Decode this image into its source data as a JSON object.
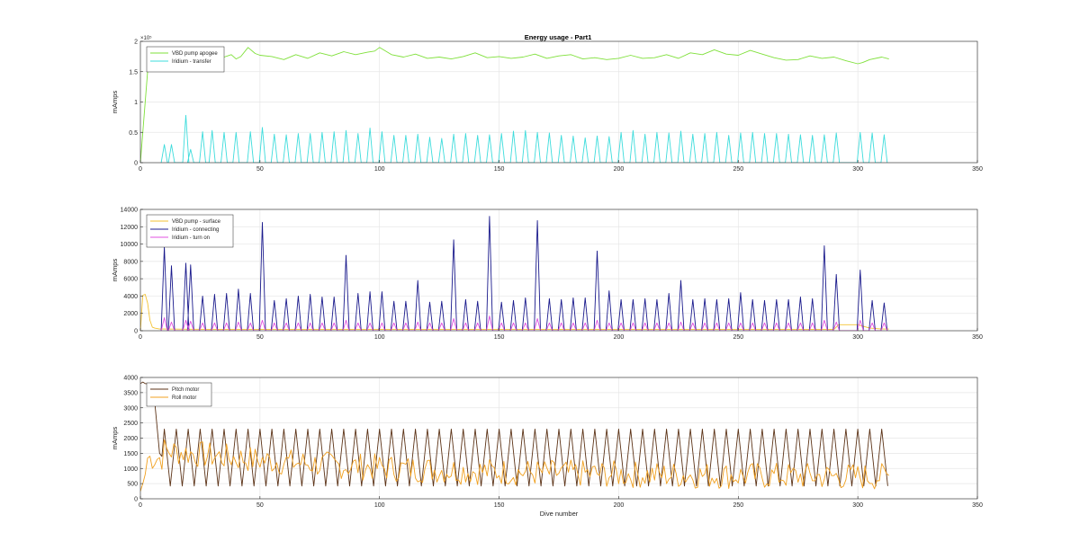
{
  "chart_data": [
    {
      "type": "line",
      "title": "Energy usage - Part1",
      "xlabel": "",
      "ylabel": "mAmps",
      "xlim": [
        0,
        350
      ],
      "ylim": [
        0,
        200000
      ],
      "xticks": [
        0,
        50,
        100,
        150,
        200,
        250,
        300,
        350
      ],
      "yticks": [
        0,
        50000,
        100000,
        150000,
        200000
      ],
      "ytick_labels": [
        "0",
        "0.5",
        "1",
        "1.5",
        "2"
      ],
      "y_exponent_label": "×10⁵",
      "grid": true,
      "legend_position": "top-left",
      "series": [
        {
          "name": "VBD pump apogee",
          "color": "#7fe03a",
          "x": [
            0,
            3,
            5,
            8,
            10,
            12,
            15,
            17,
            20,
            22,
            25,
            28,
            30,
            32,
            35,
            38,
            40,
            42,
            45,
            48,
            50,
            55,
            60,
            65,
            70,
            75,
            80,
            85,
            90,
            95,
            98,
            100,
            105,
            110,
            115,
            120,
            125,
            130,
            135,
            140,
            145,
            150,
            155,
            160,
            165,
            170,
            175,
            180,
            185,
            190,
            195,
            200,
            205,
            210,
            215,
            220,
            225,
            230,
            235,
            240,
            245,
            250,
            255,
            260,
            265,
            270,
            275,
            280,
            285,
            290,
            295,
            300,
            302,
            305,
            310,
            313
          ],
          "y": [
            0,
            150000,
            170000,
            168000,
            172000,
            175000,
            171000,
            173000,
            169000,
            175000,
            172000,
            176000,
            170000,
            172000,
            174000,
            178000,
            171000,
            175000,
            190000,
            180000,
            177000,
            175000,
            170000,
            178000,
            172000,
            181000,
            176000,
            183000,
            178000,
            182000,
            184000,
            190000,
            178000,
            174000,
            179000,
            172000,
            174000,
            171000,
            175000,
            181000,
            173000,
            175000,
            172000,
            174000,
            179000,
            172000,
            176000,
            178000,
            171000,
            173000,
            170000,
            172000,
            177000,
            172000,
            173000,
            178000,
            172000,
            181000,
            178000,
            186000,
            179000,
            177000,
            185000,
            179000,
            173000,
            169000,
            170000,
            176000,
            172000,
            174000,
            168000,
            163000,
            165000,
            170000,
            174000,
            171000
          ]
        },
        {
          "name": "Iridium - transfer",
          "color": "#3ddcdc",
          "spike_x": [
            10,
            13,
            19,
            21,
            26,
            30,
            35,
            40,
            46,
            51,
            56,
            61,
            66,
            71,
            76,
            81,
            86,
            91,
            96,
            101,
            106,
            111,
            116,
            121,
            126,
            131,
            136,
            141,
            146,
            151,
            156,
            161,
            166,
            171,
            176,
            181,
            186,
            191,
            196,
            201,
            206,
            211,
            216,
            221,
            226,
            231,
            236,
            241,
            246,
            251,
            256,
            261,
            266,
            271,
            276,
            281,
            286,
            291,
            301,
            306,
            311
          ],
          "spike_y": [
            30000,
            30000,
            78000,
            22000,
            51000,
            53000,
            50000,
            50000,
            51000,
            58000,
            47000,
            46000,
            48000,
            48000,
            50000,
            51000,
            53000,
            48000,
            57000,
            51000,
            45000,
            45000,
            47000,
            42000,
            40000,
            47000,
            48000,
            45000,
            46000,
            48000,
            52000,
            53000,
            50000,
            49000,
            45000,
            44000,
            41000,
            44000,
            43000,
            50000,
            53000,
            47000,
            50000,
            49000,
            52000,
            47000,
            48000,
            50000,
            45000,
            49000,
            50000,
            48000,
            48000,
            47000,
            46000,
            45000,
            46000,
            49000,
            50000,
            49000,
            46000
          ]
        }
      ]
    },
    {
      "type": "line",
      "title": "",
      "xlabel": "",
      "ylabel": "mAmps",
      "xlim": [
        0,
        350
      ],
      "ylim": [
        0,
        14000
      ],
      "xticks": [
        0,
        50,
        100,
        150,
        200,
        250,
        300,
        350
      ],
      "yticks": [
        0,
        2000,
        4000,
        6000,
        8000,
        10000,
        12000,
        14000
      ],
      "ytick_labels": [
        "0",
        "2000",
        "4000",
        "6000",
        "8000",
        "10000",
        "12000",
        "14000"
      ],
      "grid": true,
      "legend_position": "top-left",
      "series": [
        {
          "name": "VBD pump - surface",
          "color": "#f3c233",
          "x": [
            0,
            1,
            2,
            3,
            4,
            5,
            6,
            7,
            8,
            10,
            20,
            40,
            60,
            80,
            100,
            120,
            140,
            160,
            180,
            200,
            220,
            240,
            260,
            280,
            290,
            292,
            295,
            300,
            305,
            310,
            313
          ],
          "y": [
            0,
            4100,
            4200,
            3200,
            1200,
            400,
            300,
            250,
            200,
            200,
            180,
            150,
            150,
            150,
            150,
            150,
            150,
            150,
            150,
            150,
            150,
            150,
            150,
            150,
            150,
            700,
            700,
            700,
            300,
            200,
            200
          ]
        },
        {
          "name": "Iridium - connecting",
          "color": "#1a1a8c",
          "spike_x": [
            10,
            13,
            19,
            21,
            26,
            31,
            36,
            41,
            46,
            51,
            56,
            61,
            66,
            71,
            76,
            81,
            86,
            91,
            96,
            101,
            106,
            111,
            116,
            121,
            126,
            131,
            136,
            141,
            146,
            151,
            156,
            161,
            166,
            171,
            176,
            181,
            186,
            191,
            196,
            201,
            206,
            211,
            216,
            221,
            226,
            231,
            236,
            241,
            246,
            251,
            256,
            261,
            266,
            271,
            276,
            281,
            286,
            291,
            301,
            306,
            311
          ],
          "spike_y": [
            9700,
            7500,
            7800,
            7600,
            4000,
            4200,
            4300,
            4800,
            4300,
            12500,
            3500,
            3700,
            4000,
            4200,
            3900,
            3900,
            8700,
            4300,
            4500,
            4500,
            3400,
            3400,
            5800,
            3300,
            3400,
            10500,
            3600,
            3400,
            13200,
            3300,
            3500,
            3800,
            12700,
            3700,
            3600,
            3800,
            3800,
            9200,
            4600,
            3600,
            3600,
            3700,
            3600,
            4300,
            5800,
            3600,
            3700,
            3600,
            3700,
            4400,
            3600,
            3500,
            3600,
            3600,
            3900,
            3700,
            9800,
            6500,
            7000,
            3500,
            3200
          ]
        },
        {
          "name": "Iridium - turn on",
          "color": "#e050e0",
          "spike_x": [
            10,
            13,
            19,
            21,
            26,
            31,
            36,
            41,
            46,
            51,
            56,
            61,
            66,
            71,
            76,
            81,
            86,
            91,
            96,
            101,
            106,
            111,
            116,
            121,
            126,
            131,
            136,
            141,
            146,
            151,
            156,
            161,
            166,
            171,
            176,
            181,
            186,
            191,
            196,
            201,
            206,
            211,
            216,
            221,
            226,
            231,
            236,
            241,
            246,
            251,
            256,
            261,
            266,
            271,
            276,
            281,
            286,
            291,
            301,
            306,
            311
          ],
          "spike_y": [
            1500,
            1000,
            1200,
            1100,
            900,
            900,
            900,
            1000,
            900,
            1200,
            900,
            900,
            900,
            900,
            900,
            900,
            1200,
            900,
            900,
            900,
            900,
            900,
            1000,
            900,
            900,
            1400,
            900,
            900,
            1700,
            900,
            900,
            900,
            1400,
            900,
            900,
            900,
            900,
            1200,
            900,
            900,
            900,
            900,
            900,
            900,
            1000,
            900,
            900,
            900,
            900,
            900,
            900,
            900,
            900,
            900,
            900,
            900,
            1200,
            1000,
            1200,
            900,
            900
          ]
        }
      ]
    },
    {
      "type": "line",
      "title": "",
      "xlabel": "Dive number",
      "ylabel": "mAmps",
      "xlim": [
        0,
        350
      ],
      "ylim": [
        0,
        4000
      ],
      "xticks": [
        0,
        50,
        100,
        150,
        200,
        250,
        300,
        350
      ],
      "yticks": [
        0,
        500,
        1000,
        1500,
        2000,
        2500,
        3000,
        3500,
        4000
      ],
      "ytick_labels": [
        "0",
        "500",
        "1000",
        "1500",
        "2000",
        "2500",
        "3000",
        "3500",
        "4000"
      ],
      "grid": true,
      "legend_position": "top-left",
      "series": [
        {
          "name": "Pitch motor",
          "color": "#5c3317",
          "period": 5,
          "x_start": 10,
          "x_end": 313,
          "high": 2300,
          "low": 420
        },
        {
          "name": "Roll motor",
          "color": "#f0a020",
          "x_start": 0,
          "x_end": 313
        }
      ]
    }
  ]
}
